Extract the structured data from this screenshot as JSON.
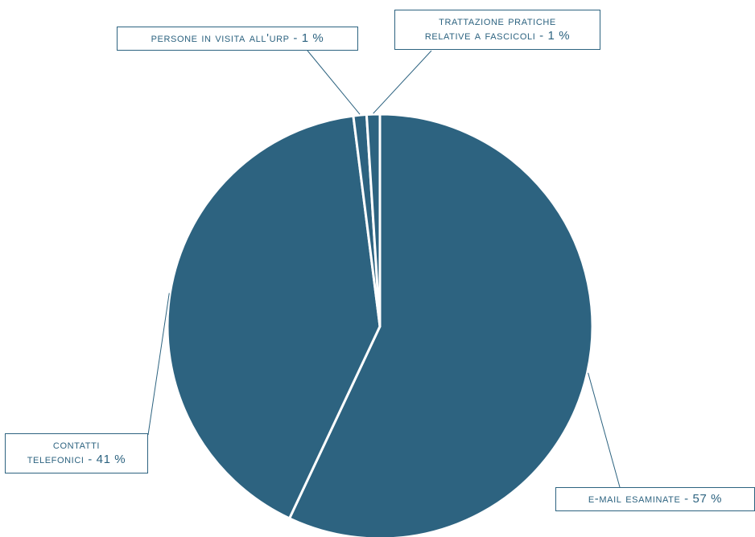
{
  "chart_data": {
    "type": "pie",
    "title": "",
    "colors": {
      "slice": "#2d6380",
      "separator": "#ffffff",
      "leader": "#2d6380"
    },
    "slices": [
      {
        "label": "e-mail esaminate - 57 %",
        "lines": [
          "e-mail esaminate - 57 %"
        ],
        "value": 57
      },
      {
        "label": "contatti telefonici - 41 %",
        "lines": [
          "contatti",
          "telefonici - 41 %"
        ],
        "value": 41
      },
      {
        "label": "persone in visita all'urp - 1 %",
        "lines": [
          "persone in visita all'urp - 1 %"
        ],
        "value": 1
      },
      {
        "label": "trattazione pratiche relative a fascicoli - 1 %",
        "lines": [
          "trattazione pratiche",
          "relative a fascicoli - 1 %"
        ],
        "value": 1
      }
    ]
  }
}
